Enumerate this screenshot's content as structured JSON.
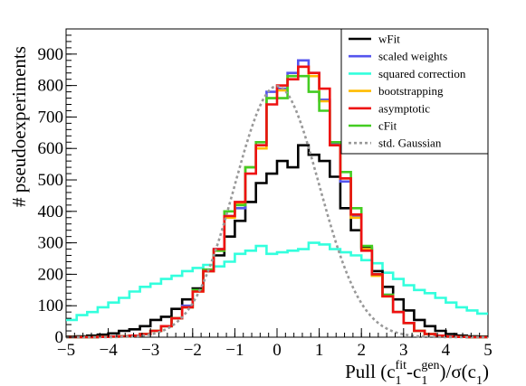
{
  "chart_data": {
    "type": "line",
    "title": "",
    "xlabel": "Pull (c₁ᶠⁱᵗ-c₁ᵍᵉⁿ)/σ(c₁)",
    "xlabel_parts": {
      "prefix": "Pull (c",
      "sub1": "1",
      "sup1": "fit",
      "mid": "-c",
      "sub2": "1",
      "sup2": "gen",
      "post": ")/σ(c",
      "sub3": "1",
      "suffix": ")"
    },
    "ylabel": "# pseudoexperiments",
    "xlim": [
      -5,
      5
    ],
    "ylim": [
      0,
      980
    ],
    "x_ticks": [
      -5,
      -4,
      -3,
      -2,
      -1,
      0,
      1,
      2,
      3,
      4,
      5
    ],
    "y_ticks": [
      0,
      100,
      200,
      300,
      400,
      500,
      600,
      700,
      800,
      900
    ],
    "bin_edges_range": [
      -5,
      5
    ],
    "bin_count": 40,
    "legend_position": "top-right",
    "grid": false,
    "series": [
      {
        "name": "squared correction",
        "color": "#33ffdd",
        "style": "step",
        "values": [
          55,
          70,
          80,
          95,
          110,
          125,
          145,
          160,
          170,
          185,
          195,
          210,
          220,
          230,
          225,
          240,
          265,
          275,
          290,
          265,
          270,
          275,
          280,
          300,
          295,
          280,
          270,
          260,
          245,
          235,
          205,
          185,
          165,
          150,
          140,
          125,
          110,
          95,
          85,
          75
        ]
      },
      {
        "name": "wFit",
        "color": "#000000",
        "style": "step",
        "values": [
          2,
          3,
          5,
          8,
          12,
          20,
          25,
          35,
          55,
          65,
          90,
          120,
          155,
          210,
          260,
          320,
          370,
          430,
          490,
          520,
          560,
          540,
          610,
          580,
          560,
          510,
          410,
          340,
          285,
          210,
          160,
          120,
          85,
          55,
          35,
          20,
          10,
          5,
          3,
          2
        ]
      },
      {
        "name": "scaled weights",
        "color": "#5555ee",
        "style": "step",
        "values": [
          0,
          0,
          0,
          1,
          2,
          3,
          5,
          10,
          20,
          35,
          60,
          100,
          150,
          215,
          280,
          385,
          410,
          540,
          610,
          780,
          790,
          840,
          880,
          840,
          755,
          615,
          495,
          385,
          280,
          200,
          135,
          80,
          45,
          20,
          10,
          5,
          2,
          1,
          0,
          0
        ]
      },
      {
        "name": "bootstrapping",
        "color": "#ffbb00",
        "style": "step",
        "values": [
          0,
          0,
          0,
          1,
          2,
          3,
          5,
          10,
          20,
          35,
          60,
          95,
          145,
          210,
          275,
          380,
          425,
          540,
          600,
          760,
          785,
          830,
          860,
          830,
          750,
          610,
          505,
          380,
          280,
          195,
          130,
          80,
          45,
          20,
          10,
          5,
          2,
          1,
          0,
          0
        ]
      },
      {
        "name": "cFit",
        "color": "#44cc22",
        "style": "step",
        "values": [
          0,
          0,
          0,
          1,
          2,
          3,
          5,
          10,
          20,
          35,
          60,
          95,
          150,
          215,
          275,
          400,
          420,
          540,
          620,
          760,
          760,
          830,
          830,
          780,
          720,
          620,
          525,
          410,
          290,
          200,
          135,
          80,
          45,
          20,
          10,
          5,
          2,
          1,
          0,
          0
        ]
      },
      {
        "name": "asymptotic",
        "color": "#ee1111",
        "style": "step",
        "values": [
          0,
          0,
          0,
          1,
          2,
          3,
          5,
          10,
          20,
          35,
          60,
          95,
          145,
          210,
          280,
          385,
          430,
          520,
          610,
          740,
          800,
          820,
          860,
          840,
          790,
          610,
          505,
          390,
          275,
          200,
          130,
          80,
          45,
          20,
          10,
          5,
          2,
          1,
          0,
          0
        ]
      },
      {
        "name": "std. Gaussian",
        "color": "#999999",
        "style": "dashed",
        "gaussian": {
          "amplitude": 798,
          "mean": 0,
          "sigma": 1
        }
      }
    ],
    "legend_order": [
      "wFit",
      "scaled weights",
      "squared correction",
      "bootstrapping",
      "asymptotic",
      "cFit",
      "std. Gaussian"
    ]
  }
}
